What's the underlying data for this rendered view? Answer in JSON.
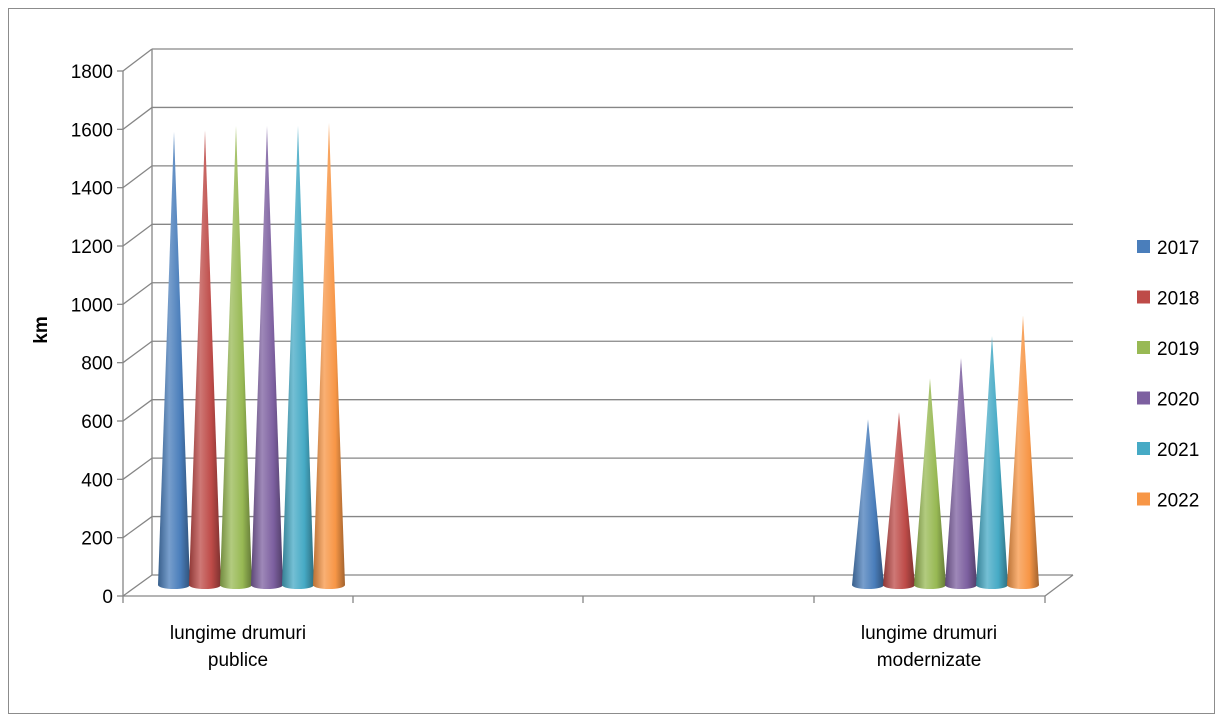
{
  "chart_data": {
    "type": "bar",
    "bar_shape": "cone",
    "projection": "3d",
    "categories": [
      "lungime drumuri publice",
      "lungime drumuri modernizate"
    ],
    "category_lines": [
      [
        "lungime drumuri",
        "publice"
      ],
      [
        "lungime drumuri",
        "modernizate"
      ]
    ],
    "series": [
      {
        "name": "2017",
        "color": "#4A7EBB",
        "values": [
          1575,
          590
        ]
      },
      {
        "name": "2018",
        "color": "#BE4B48",
        "values": [
          1580,
          615
        ]
      },
      {
        "name": "2019",
        "color": "#98B954",
        "values": [
          1595,
          730
        ]
      },
      {
        "name": "2020",
        "color": "#7D60A0",
        "values": [
          1595,
          800
        ]
      },
      {
        "name": "2021",
        "color": "#46AAC5",
        "values": [
          1595,
          875
        ]
      },
      {
        "name": "2022",
        "color": "#F79646",
        "values": [
          1605,
          945
        ]
      }
    ],
    "ylabel": "km",
    "ylim": [
      0,
      1800
    ],
    "ytick_step": 200,
    "yticks": [
      "0",
      "200",
      "400",
      "600",
      "800",
      "1000",
      "1200",
      "1400",
      "1600",
      "1800"
    ],
    "grid": true,
    "legend_position": "right"
  }
}
